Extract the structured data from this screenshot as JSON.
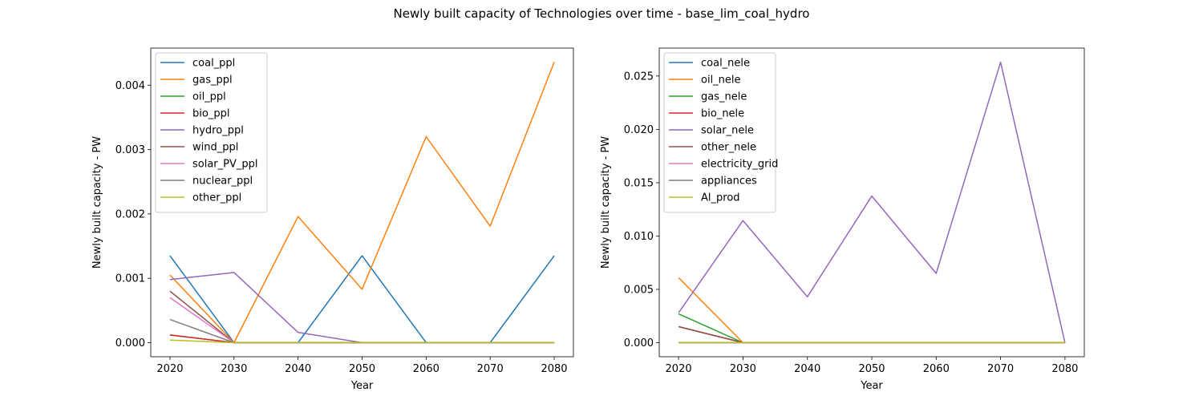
{
  "figure": {
    "title": "Newly built capacity of Technologies over time - base_lim_coal_hydro"
  },
  "colors": {
    "blue": "#1f77b4",
    "orange": "#ff7f0e",
    "green": "#2ca02c",
    "red": "#d62728",
    "purple": "#9467bd",
    "brown": "#8c564b",
    "pink": "#e377c2",
    "gray": "#7f7f7f",
    "olive": "#bcbd22"
  },
  "chart_data": [
    {
      "type": "line",
      "title": "",
      "xlabel": "Year",
      "ylabel": "Newly built capacity - PW",
      "x": [
        2020,
        2030,
        2040,
        2050,
        2060,
        2070,
        2080
      ],
      "xlim": [
        2017,
        2083
      ],
      "ylim": [
        -0.000218,
        0.004576
      ],
      "yticks": [
        "0.000",
        "0.001",
        "0.002",
        "0.003",
        "0.004"
      ],
      "ytick_values": [
        0,
        0.001,
        0.002,
        0.003,
        0.004
      ],
      "legend_position": "upper left",
      "series": [
        {
          "name": "coal_ppl",
          "color": "#1f77b4",
          "values": [
            0.00135,
            0,
            0,
            0.00135,
            0,
            0,
            0.00135
          ]
        },
        {
          "name": "gas_ppl",
          "color": "#ff7f0e",
          "values": [
            0.00105,
            0,
            0.00196,
            0.00083,
            0.0032,
            0.00181,
            0.00436
          ]
        },
        {
          "name": "oil_ppl",
          "color": "#2ca02c",
          "values": [
            0.00012,
            0,
            0,
            0,
            0,
            0,
            0
          ]
        },
        {
          "name": "bio_ppl",
          "color": "#d62728",
          "values": [
            0.00012,
            0,
            0,
            0,
            0,
            0,
            0
          ]
        },
        {
          "name": "hydro_ppl",
          "color": "#9467bd",
          "values": [
            0.00098,
            0.00109,
            0.00016,
            0,
            0,
            0,
            0
          ]
        },
        {
          "name": "wind_ppl",
          "color": "#8c564b",
          "values": [
            0.0008,
            0,
            0,
            0,
            0,
            0,
            0
          ]
        },
        {
          "name": "solar_PV_ppl",
          "color": "#e377c2",
          "values": [
            0.0007,
            0,
            0,
            0,
            0,
            0,
            0
          ]
        },
        {
          "name": "nuclear_ppl",
          "color": "#7f7f7f",
          "values": [
            0.00036,
            0,
            0,
            0,
            0,
            0,
            0
          ]
        },
        {
          "name": "other_ppl",
          "color": "#bcbd22",
          "values": [
            4e-05,
            0,
            0,
            0,
            0,
            0,
            0
          ]
        }
      ]
    },
    {
      "type": "line",
      "title": "",
      "xlabel": "Year",
      "ylabel": "Newly built capacity - PW",
      "x": [
        2020,
        2030,
        2040,
        2050,
        2060,
        2070,
        2080
      ],
      "xlim": [
        2017,
        2083
      ],
      "ylim": [
        -0.001315,
        0.02762
      ],
      "yticks": [
        "0.000",
        "0.005",
        "0.010",
        "0.015",
        "0.020",
        "0.025"
      ],
      "ytick_values": [
        0,
        0.005,
        0.01,
        0.015,
        0.02,
        0.025
      ],
      "legend_position": "upper left",
      "series": [
        {
          "name": "coal_nele",
          "color": "#1f77b4",
          "values": [
            0,
            0,
            0,
            0,
            0,
            0,
            0
          ]
        },
        {
          "name": "oil_nele",
          "color": "#ff7f0e",
          "values": [
            0.0061,
            0,
            0,
            0,
            0,
            0,
            0
          ]
        },
        {
          "name": "gas_nele",
          "color": "#2ca02c",
          "values": [
            0.0027,
            0,
            0,
            0,
            0,
            0,
            0
          ]
        },
        {
          "name": "bio_nele",
          "color": "#d62728",
          "values": [
            0.0015,
            0,
            0,
            0,
            0,
            0,
            0
          ]
        },
        {
          "name": "solar_nele",
          "color": "#9467bd",
          "values": [
            0.0028,
            0.01145,
            0.0043,
            0.01375,
            0.0065,
            0.0263,
            0
          ]
        },
        {
          "name": "other_nele",
          "color": "#8c564b",
          "values": [
            0.0015,
            0,
            0,
            0,
            0,
            0,
            0
          ]
        },
        {
          "name": "electricity_grid",
          "color": "#e377c2",
          "values": [
            0,
            0,
            0,
            0,
            0,
            0,
            0
          ]
        },
        {
          "name": "appliances",
          "color": "#7f7f7f",
          "values": [
            0,
            0,
            0,
            0,
            0,
            0,
            0
          ]
        },
        {
          "name": "Al_prod",
          "color": "#bcbd22",
          "values": [
            0,
            0,
            0,
            0,
            0,
            0,
            0
          ]
        }
      ]
    }
  ]
}
